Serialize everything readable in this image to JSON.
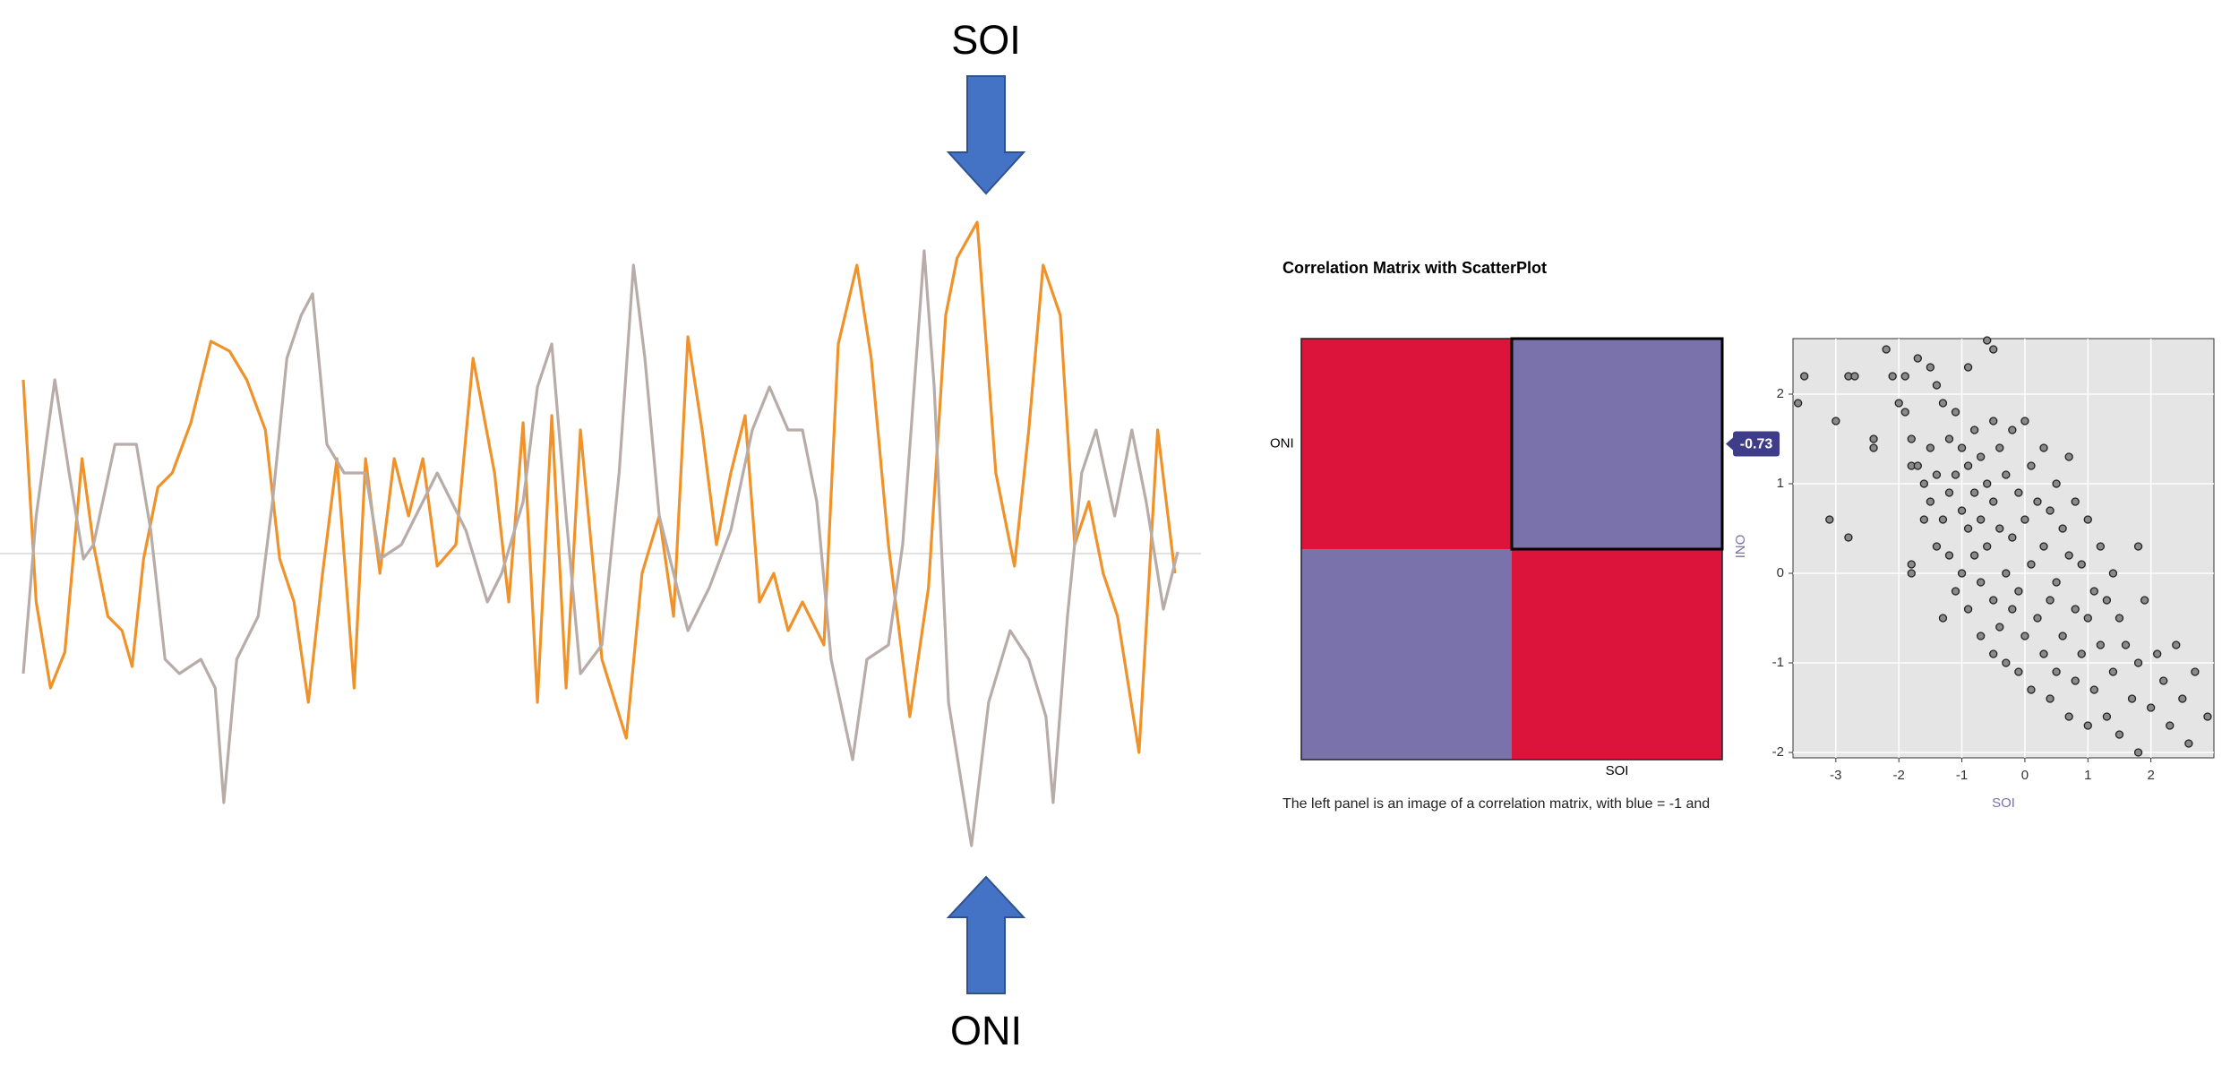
{
  "panel": {
    "title": "Correlation Matrix with ScatterPlot",
    "caption": "The left panel is an image of a correlation matrix, with blue = -1 and"
  },
  "chart_data": [
    {
      "type": "line",
      "annotations": [
        "SOI",
        "ONI"
      ],
      "xlim": [
        16,
        822
      ],
      "ylim": [
        -4,
        4
      ],
      "series": [
        {
          "name": "SOI",
          "color": "#f0922a",
          "x": [
            16,
            25,
            35,
            45,
            57,
            65,
            75,
            85,
            92,
            100,
            110,
            120,
            133,
            147,
            160,
            172,
            185,
            195,
            205,
            215,
            225,
            235,
            247,
            255,
            265,
            275,
            285,
            295,
            305,
            318,
            330,
            345,
            355,
            365,
            375,
            385,
            395,
            405,
            420,
            437,
            448,
            460,
            470,
            480,
            490,
            500,
            510,
            520,
            530,
            540,
            550,
            560,
            575,
            585,
            598,
            608,
            620,
            635,
            648,
            660,
            668,
            682,
            695,
            708,
            718,
            728,
            740,
            750,
            760,
            770,
            780,
            795,
            808,
            820
          ],
          "values": [
            1.94,
            -0.54,
            -1.5,
            -1.1,
            1.06,
            0.1,
            -0.7,
            -0.86,
            -1.26,
            -0.06,
            0.74,
            0.9,
            1.46,
            2.37,
            2.26,
            1.94,
            1.38,
            -0.06,
            -0.54,
            -1.66,
            -0.22,
            1.06,
            -1.5,
            1.06,
            -0.22,
            1.06,
            0.42,
            1.06,
            -0.14,
            0.1,
            2.18,
            0.9,
            -0.54,
            1.46,
            -1.66,
            1.54,
            -1.5,
            1.38,
            -1.18,
            -2.06,
            -0.22,
            0.42,
            -0.7,
            2.42,
            1.38,
            0.1,
            0.9,
            1.54,
            -0.54,
            -0.22,
            -0.86,
            -0.54,
            -1.02,
            2.34,
            3.22,
            2.18,
            0.1,
            -1.82,
            -0.38,
            2.66,
            3.3,
            3.7,
            0.9,
            -0.14,
            1.38,
            3.22,
            2.66,
            0.1,
            0.58,
            -0.22,
            -0.7,
            -2.22,
            1.38,
            -0.22
          ]
        },
        {
          "name": "ONI",
          "color": "#b8aca8",
          "x": [
            16,
            25,
            38,
            48,
            58,
            65,
            80,
            95,
            105,
            115,
            125,
            140,
            150,
            156,
            165,
            180,
            190,
            200,
            210,
            218,
            228,
            240,
            255,
            265,
            280,
            295,
            305,
            315,
            325,
            340,
            350,
            365,
            375,
            385,
            395,
            405,
            420,
            432,
            442,
            450,
            460,
            470,
            480,
            495,
            510,
            525,
            537,
            550,
            560,
            570,
            580,
            595,
            605,
            620,
            630,
            645,
            652,
            662,
            678,
            690,
            705,
            718,
            730,
            735,
            745,
            755,
            765,
            778,
            790,
            800,
            812,
            822
          ],
          "values": [
            -1.34,
            0.42,
            1.94,
            0.9,
            -0.06,
            0.1,
            1.22,
            1.22,
            0.26,
            -1.18,
            -1.34,
            -1.18,
            -1.5,
            -2.78,
            -1.18,
            -0.7,
            0.58,
            2.18,
            2.66,
            2.9,
            1.22,
            0.9,
            0.9,
            -0.06,
            0.1,
            0.58,
            0.9,
            0.58,
            0.26,
            -0.54,
            -0.22,
            0.58,
            1.86,
            2.34,
            0.42,
            -1.34,
            -1.02,
            0.9,
            3.22,
            2.18,
            0.42,
            -0.22,
            -0.86,
            -0.38,
            0.26,
            1.38,
            1.86,
            1.38,
            1.38,
            0.58,
            -1.18,
            -2.3,
            -1.18,
            -1.02,
            0.1,
            3.38,
            1.86,
            -1.66,
            -3.26,
            -1.66,
            -0.86,
            -1.18,
            -1.82,
            -2.78,
            -0.7,
            0.9,
            1.38,
            0.42,
            1.38,
            0.58,
            -0.62,
            0.02
          ]
        }
      ]
    },
    {
      "type": "heatmap",
      "x_label": "SOI",
      "y_label": "ONI",
      "values": [
        [
          1,
          -0.73
        ],
        [
          -0.73,
          1
        ]
      ],
      "value_labels": [
        [
          null,
          "-0.73"
        ],
        [
          null,
          null
        ]
      ],
      "colors": {
        "positive": "#dc143c",
        "negative": "#7a72aa"
      }
    },
    {
      "type": "scatter",
      "x_label": "SOI",
      "y_label": "ONI",
      "xlim": [
        -3.68,
        3.0
      ],
      "ylim": [
        -2.06,
        2.62
      ],
      "xticks": [
        -3,
        -2,
        -1,
        0,
        1,
        2
      ],
      "yticks": [
        -2,
        -1,
        0,
        1,
        2
      ],
      "grid": true,
      "color": "#8a8a8a",
      "x": [
        -3.6,
        -3.5,
        -3.1,
        -3.0,
        -2.8,
        -2.8,
        -2.7,
        -2.4,
        -2.4,
        -2.2,
        -2.1,
        -2.0,
        -1.9,
        -1.9,
        -1.8,
        -1.8,
        -1.8,
        -1.8,
        -1.7,
        -1.7,
        -1.6,
        -1.6,
        -1.5,
        -1.5,
        -1.5,
        -1.4,
        -1.4,
        -1.4,
        -1.3,
        -1.3,
        -1.3,
        -1.2,
        -1.2,
        -1.2,
        -1.1,
        -1.1,
        -1.1,
        -1.0,
        -1.0,
        -1.0,
        -0.9,
        -0.9,
        -0.9,
        -0.9,
        -0.8,
        -0.8,
        -0.8,
        -0.7,
        -0.7,
        -0.7,
        -0.7,
        -0.6,
        -0.6,
        -0.6,
        -0.5,
        -0.5,
        -0.5,
        -0.5,
        -0.5,
        -0.4,
        -0.4,
        -0.4,
        -0.3,
        -0.3,
        -0.3,
        -0.2,
        -0.2,
        -0.2,
        -0.1,
        -0.1,
        -0.1,
        0.0,
        0.0,
        0.0,
        0.1,
        0.1,
        0.1,
        0.2,
        0.2,
        0.3,
        0.3,
        0.3,
        0.4,
        0.4,
        0.4,
        0.5,
        0.5,
        0.5,
        0.6,
        0.6,
        0.7,
        0.7,
        0.7,
        0.8,
        0.8,
        0.8,
        0.9,
        0.9,
        1.0,
        1.0,
        1.0,
        1.1,
        1.1,
        1.2,
        1.2,
        1.3,
        1.3,
        1.4,
        1.4,
        1.5,
        1.5,
        1.6,
        1.7,
        1.8,
        1.8,
        1.8,
        1.9,
        2.0,
        2.1,
        2.2,
        2.3,
        2.4,
        2.5,
        2.6,
        2.7,
        2.9
      ],
      "y": [
        1.9,
        2.2,
        0.6,
        1.7,
        0.4,
        2.2,
        2.2,
        1.5,
        1.4,
        2.5,
        2.2,
        1.9,
        1.8,
        2.2,
        1.5,
        1.2,
        0.1,
        0.0,
        2.4,
        1.2,
        1.0,
        0.6,
        2.3,
        1.4,
        0.8,
        2.1,
        1.1,
        0.3,
        1.9,
        0.6,
        -0.5,
        1.5,
        0.9,
        0.2,
        1.8,
        1.1,
        -0.2,
        1.4,
        0.7,
        0.0,
        2.3,
        1.2,
        0.5,
        -0.4,
        1.6,
        0.9,
        0.2,
        1.3,
        0.6,
        -0.1,
        -0.7,
        2.6,
        1.0,
        0.3,
        2.5,
        1.7,
        0.8,
        -0.3,
        -0.9,
        1.4,
        0.5,
        -0.6,
        1.1,
        0.0,
        -1.0,
        1.6,
        0.4,
        -0.4,
        0.9,
        -0.2,
        -1.1,
        1.7,
        0.6,
        -0.7,
        1.2,
        0.1,
        -1.3,
        0.8,
        -0.5,
        1.4,
        0.3,
        -0.9,
        0.7,
        -0.3,
        -1.4,
        1.0,
        -0.1,
        -1.1,
        0.5,
        -0.7,
        1.3,
        0.2,
        -1.6,
        0.8,
        -0.4,
        -1.2,
        0.1,
        -0.9,
        0.6,
        -0.5,
        -1.7,
        -0.2,
        -1.3,
        0.3,
        -0.8,
        -0.3,
        -1.6,
        0.0,
        -1.1,
        -0.5,
        -1.8,
        -0.8,
        -1.4,
        0.3,
        -1.0,
        -2.0,
        -0.3,
        -1.5,
        -0.9,
        -1.2,
        -1.7,
        -0.8,
        -1.4,
        -1.9,
        -1.1,
        -1.6
      ]
    }
  ]
}
